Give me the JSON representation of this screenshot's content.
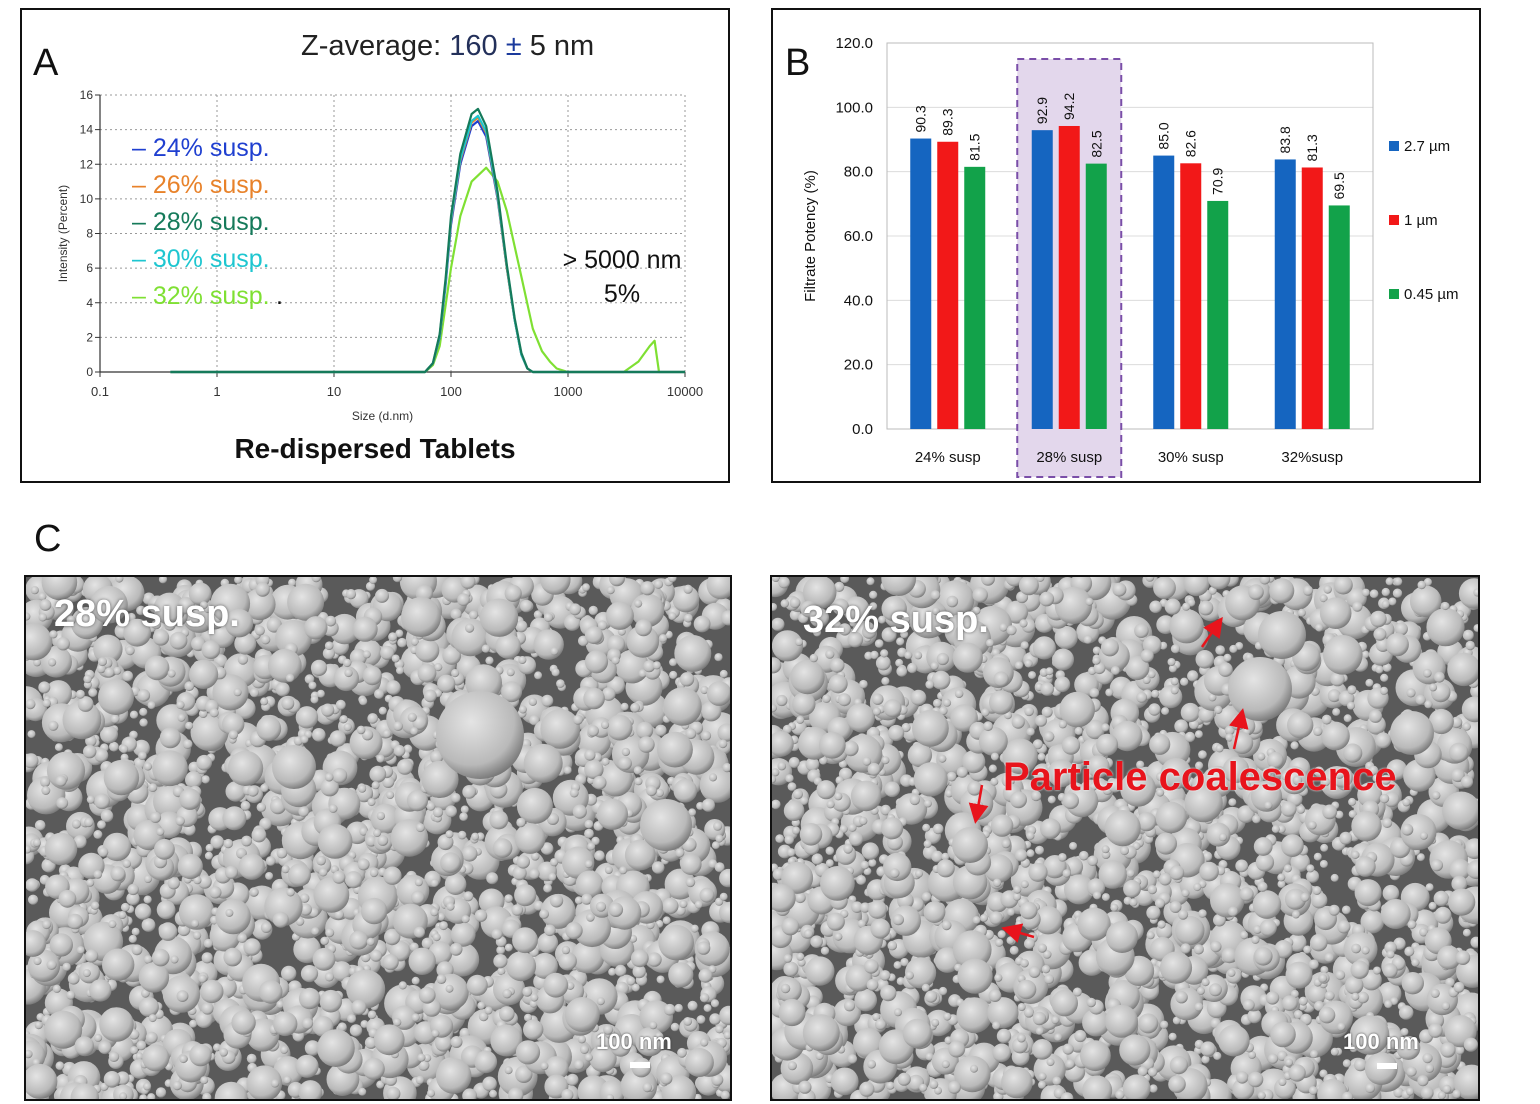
{
  "panelA": {
    "letter": "A",
    "zavg_prefix": "Z-average: ",
    "zavg_value": "160",
    "zavg_pm": "±",
    "zavg_suffix": "5 nm",
    "footer": "Re-dispersed Tablets",
    "annotation_line1": "> 5000 nm",
    "annotation_line2": "5%",
    "legend_period": ".",
    "chart_data": {
      "type": "line",
      "xlabel": "Size (d.nm)",
      "ylabel": "Intensity (Percent)",
      "xscale": "log",
      "xlim": [
        0.1,
        10000
      ],
      "ylim": [
        0,
        16
      ],
      "xticks": [
        "0.1",
        "1",
        "10",
        "100",
        "1000",
        "10000"
      ],
      "yticks": [
        "0",
        "2",
        "4",
        "6",
        "8",
        "10",
        "12",
        "14",
        "16"
      ],
      "grid": true,
      "legend_position": "left",
      "series": [
        {
          "name": "– 24% susp.",
          "color": "#1f3fd0",
          "x": [
            0.4,
            60,
            70,
            80,
            90,
            100,
            120,
            150,
            170,
            200,
            250,
            300,
            350,
            400,
            450,
            500,
            1000,
            10000
          ],
          "y": [
            0,
            0,
            0.5,
            2,
            5,
            8.5,
            12,
            14.2,
            14.5,
            13.6,
            10,
            6,
            3,
            1,
            0.2,
            0,
            0,
            0
          ]
        },
        {
          "name": "– 26% susp.",
          "color": "#e8822a",
          "x": [
            0.4,
            60,
            70,
            80,
            90,
            100,
            120,
            150,
            170,
            200,
            250,
            300,
            350,
            400,
            450,
            500,
            1000,
            10000
          ],
          "y": [
            0,
            0,
            0.5,
            2.1,
            5.2,
            8.7,
            12.2,
            14.4,
            14.7,
            13.8,
            10.1,
            6,
            3,
            1,
            0.2,
            0,
            0,
            0
          ]
        },
        {
          "name": "– 28% susp.",
          "color": "#157a5a",
          "x": [
            0.4,
            60,
            70,
            80,
            90,
            100,
            120,
            150,
            170,
            200,
            250,
            300,
            350,
            400,
            450,
            500,
            1000,
            10000
          ],
          "y": [
            0,
            0,
            0.5,
            2.2,
            5.4,
            9,
            12.6,
            14.9,
            15.2,
            14.2,
            10.4,
            6.2,
            3.1,
            1.1,
            0.2,
            0,
            0,
            0
          ]
        },
        {
          "name": "– 30% susp.",
          "color": "#1ec6d0",
          "x": [
            0.4,
            60,
            70,
            80,
            90,
            100,
            120,
            150,
            170,
            200,
            250,
            300,
            350,
            400,
            450,
            500,
            1000,
            10000
          ],
          "y": [
            0,
            0,
            0.5,
            2.1,
            5.2,
            8.8,
            12.3,
            14.5,
            14.8,
            13.9,
            10.2,
            6.1,
            3,
            1,
            0.2,
            0,
            0,
            0
          ]
        },
        {
          "name": "– 32% susp.",
          "color": "#7fe033",
          "x": [
            0.4,
            60,
            70,
            80,
            100,
            120,
            150,
            200,
            250,
            300,
            400,
            500,
            600,
            700,
            800,
            1000,
            3000,
            4000,
            5000,
            5500,
            6000,
            10000
          ],
          "y": [
            0,
            0,
            0.4,
            1.5,
            6,
            9,
            11,
            11.8,
            11,
            9.3,
            5.5,
            2.5,
            1.2,
            0.6,
            0.2,
            0,
            0,
            0.6,
            1.5,
            1.8,
            0,
            0
          ]
        }
      ]
    }
  },
  "panelB": {
    "letter": "B",
    "chart_data": {
      "type": "bar",
      "ylabel": "Filtrate Potency (%)",
      "ylim": [
        0,
        120
      ],
      "yticks": [
        "0.0",
        "20.0",
        "40.0",
        "60.0",
        "80.0",
        "100.0",
        "120.0"
      ],
      "grid": true,
      "legend_position": "right",
      "categories": [
        "24% susp",
        "28% susp",
        "30% susp",
        "32%susp"
      ],
      "highlighted_category": "28% susp",
      "series": [
        {
          "name": "2.7 µm",
          "color": "#1565c0",
          "values": [
            90.3,
            92.9,
            85.0,
            83.8
          ],
          "labels": [
            "90.3",
            "92.9",
            "85.0",
            "83.8"
          ]
        },
        {
          "name": "1 µm",
          "color": "#f21818",
          "values": [
            89.3,
            94.2,
            82.6,
            81.3
          ],
          "labels": [
            "89.3",
            "94.2",
            "82.6",
            "81.3"
          ]
        },
        {
          "name": "0.45  µm",
          "color": "#12a24a",
          "values": [
            81.5,
            82.5,
            70.9,
            69.5
          ],
          "labels": [
            "81.5",
            "82.5",
            "70.9",
            "69.5"
          ]
        }
      ]
    }
  },
  "panelC": {
    "letter": "C",
    "left_label": "28% susp.",
    "right_label": "32% susp.",
    "scale_label": "100 nm",
    "coalescence_label": "Particle coalescence"
  }
}
